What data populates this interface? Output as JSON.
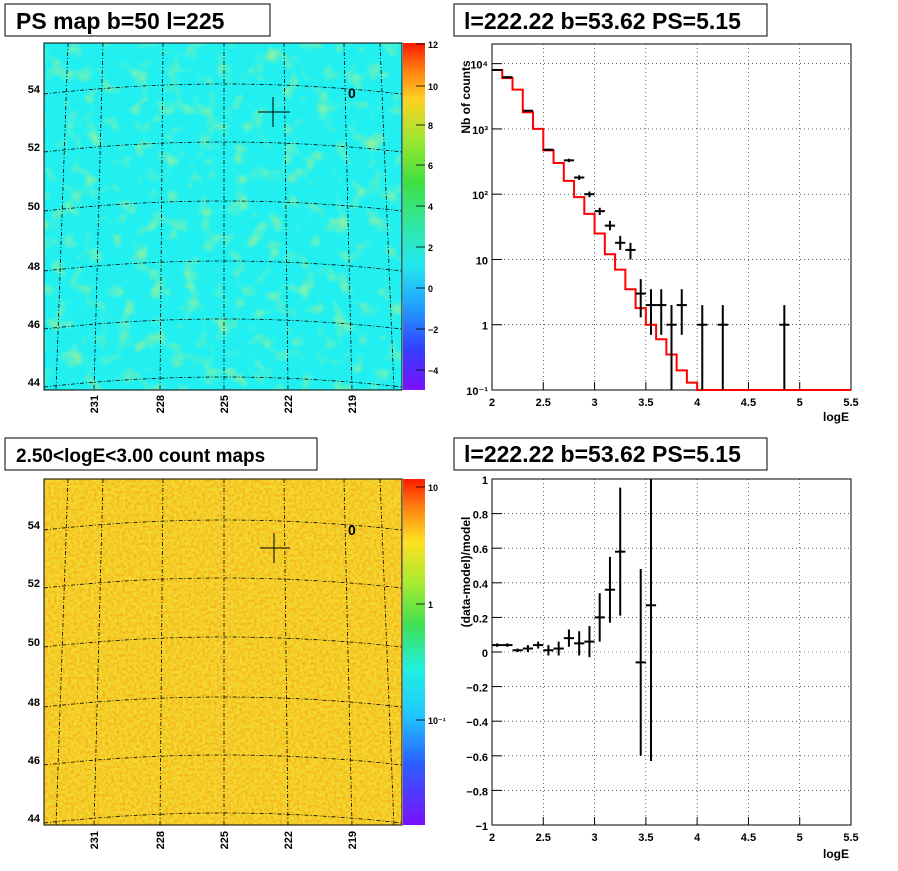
{
  "panels": {
    "ps_map": {
      "title": "PS map b=50 l=225",
      "lon_ticks": [
        "231",
        "228",
        "225",
        "222",
        "219"
      ],
      "lat_ticks": [
        "54",
        "52",
        "50",
        "48",
        "46",
        "44"
      ],
      "colorbar_ticks": [
        "12",
        "10",
        "8",
        "6",
        "4",
        "2",
        "0",
        "−2",
        "−4"
      ],
      "source_label": "0"
    },
    "spectrum": {
      "title": "l=222.22 b=53.62 PS=5.15",
      "xlabel": "logE",
      "ylabel": "Nb of counts"
    },
    "count_map": {
      "title": "2.50<logE<3.00 count maps",
      "lon_ticks": [
        "231",
        "228",
        "225",
        "222",
        "219"
      ],
      "lat_ticks": [
        "54",
        "52",
        "50",
        "48",
        "46",
        "44"
      ],
      "colorbar_ticks": [
        "10",
        "1",
        "10⁻¹"
      ],
      "source_label": "0"
    },
    "residual": {
      "title": "l=222.22 b=53.62 PS=5.15",
      "xlabel": "logE",
      "ylabel": "(data-model)/model"
    }
  },
  "chart_data": [
    {
      "type": "heatmap",
      "title": "PS map b=50 l=225",
      "x_ticks": [
        231,
        228,
        225,
        222,
        219
      ],
      "y_ticks": [
        54,
        52,
        50,
        48,
        46,
        44
      ],
      "z_range": [
        -5,
        12
      ],
      "marker": {
        "l": 222.22,
        "b": 53.62,
        "label": "0"
      }
    },
    {
      "type": "line",
      "title": "l=222.22 b=53.62 PS=5.15",
      "xlabel": "logE",
      "ylabel": "Nb of counts",
      "xlim": [
        2,
        5.5
      ],
      "ylim": [
        0.1,
        20000
      ],
      "log_y": true,
      "grid": true,
      "x_ticks": [
        2,
        2.5,
        3,
        3.5,
        4,
        4.5,
        5,
        5.5
      ],
      "y_ticks": [
        "10⁻¹",
        "1",
        "10",
        "10²",
        "10³",
        "10⁴"
      ],
      "model_steps": {
        "edges": [
          2.0,
          2.1,
          2.2,
          2.3,
          2.4,
          2.5,
          2.6,
          2.7,
          2.8,
          2.9,
          3.0,
          3.1,
          3.2,
          3.3,
          3.4,
          3.5,
          3.6,
          3.7,
          3.8,
          3.9,
          4.0,
          4.1,
          4.2,
          4.3,
          4.4,
          4.5,
          4.6,
          4.7,
          4.8,
          4.9,
          5.0,
          5.1,
          5.2,
          5.3,
          5.4,
          5.5
        ],
        "values": [
          8000,
          6000,
          4000,
          1800,
          1000,
          470,
          300,
          160,
          90,
          50,
          25,
          12,
          7,
          3.5,
          1.8,
          1.0,
          0.6,
          0.35,
          0.2,
          0.13,
          0.1,
          0.1,
          0.1,
          0.1,
          0.1,
          0.1,
          0.1,
          0.1,
          0.1,
          0.1,
          0.1,
          0.1,
          0.1,
          0.1,
          0.1
        ]
      },
      "data_points": [
        {
          "x": 2.05,
          "y": 8000,
          "lo": 7800,
          "hi": 8200
        },
        {
          "x": 2.15,
          "y": 6200,
          "lo": 6000,
          "hi": 6400
        },
        {
          "x": 2.35,
          "y": 1900,
          "lo": 1850,
          "hi": 1950
        },
        {
          "x": 2.55,
          "y": 480,
          "lo": 460,
          "hi": 500
        },
        {
          "x": 2.75,
          "y": 330,
          "lo": 310,
          "hi": 350
        },
        {
          "x": 2.85,
          "y": 180,
          "lo": 165,
          "hi": 195
        },
        {
          "x": 2.95,
          "y": 100,
          "lo": 90,
          "hi": 110
        },
        {
          "x": 3.05,
          "y": 55,
          "lo": 48,
          "hi": 62
        },
        {
          "x": 3.15,
          "y": 33,
          "lo": 28,
          "hi": 39
        },
        {
          "x": 3.25,
          "y": 18,
          "lo": 14,
          "hi": 23
        },
        {
          "x": 3.35,
          "y": 14,
          "lo": 10,
          "hi": 18
        },
        {
          "x": 3.45,
          "y": 3,
          "lo": 1.3,
          "hi": 5
        },
        {
          "x": 3.55,
          "y": 2,
          "lo": 0.7,
          "hi": 3.5
        },
        {
          "x": 3.65,
          "y": 2,
          "lo": 0.7,
          "hi": 3.5
        },
        {
          "x": 3.75,
          "y": 1,
          "lo": 0.1,
          "hi": 2
        },
        {
          "x": 3.85,
          "y": 2,
          "lo": 0.7,
          "hi": 3.5
        },
        {
          "x": 4.05,
          "y": 1,
          "lo": 0.1,
          "hi": 2
        },
        {
          "x": 4.25,
          "y": 1,
          "lo": 0.1,
          "hi": 2
        },
        {
          "x": 4.85,
          "y": 1,
          "lo": 0.1,
          "hi": 2
        }
      ]
    },
    {
      "type": "heatmap",
      "title": "2.50<logE<3.00 count maps",
      "x_ticks": [
        231,
        228,
        225,
        222,
        219
      ],
      "y_ticks": [
        54,
        52,
        50,
        48,
        46,
        44
      ],
      "log_z": true,
      "z_range": [
        0.02,
        13
      ],
      "marker": {
        "l": 222.22,
        "b": 53.62,
        "label": "0"
      }
    },
    {
      "type": "scatter",
      "title": "l=222.22 b=53.62 PS=5.15",
      "xlabel": "logE",
      "ylabel": "(data-model)/model",
      "xlim": [
        2,
        5.5
      ],
      "ylim": [
        -1,
        1
      ],
      "grid": true,
      "x_ticks": [
        2,
        2.5,
        3,
        3.5,
        4,
        4.5,
        5,
        5.5
      ],
      "y_ticks": [
        -1,
        -0.8,
        -0.6,
        -0.4,
        -0.2,
        0,
        0.2,
        0.4,
        0.6,
        0.8,
        1
      ],
      "data_points": [
        {
          "x": 2.05,
          "y": 0.04,
          "lo": 0.03,
          "hi": 0.05
        },
        {
          "x": 2.15,
          "y": 0.04,
          "lo": 0.03,
          "hi": 0.05
        },
        {
          "x": 2.25,
          "y": 0.01,
          "lo": 0.0,
          "hi": 0.02
        },
        {
          "x": 2.35,
          "y": 0.02,
          "lo": 0.0,
          "hi": 0.04
        },
        {
          "x": 2.45,
          "y": 0.04,
          "lo": 0.02,
          "hi": 0.06
        },
        {
          "x": 2.55,
          "y": 0.01,
          "lo": -0.02,
          "hi": 0.04
        },
        {
          "x": 2.65,
          "y": 0.02,
          "lo": -0.02,
          "hi": 0.06
        },
        {
          "x": 2.75,
          "y": 0.08,
          "lo": 0.03,
          "hi": 0.13
        },
        {
          "x": 2.85,
          "y": 0.05,
          "lo": -0.02,
          "hi": 0.12
        },
        {
          "x": 2.95,
          "y": 0.06,
          "lo": -0.03,
          "hi": 0.15
        },
        {
          "x": 3.05,
          "y": 0.2,
          "lo": 0.06,
          "hi": 0.34
        },
        {
          "x": 3.15,
          "y": 0.36,
          "lo": 0.17,
          "hi": 0.55
        },
        {
          "x": 3.25,
          "y": 0.58,
          "lo": 0.21,
          "hi": 0.95
        },
        {
          "x": 3.45,
          "y": -0.06,
          "lo": -0.6,
          "hi": 0.48
        },
        {
          "x": 3.55,
          "y": 0.27,
          "lo": -0.63,
          "hi": 1.0
        }
      ]
    }
  ]
}
